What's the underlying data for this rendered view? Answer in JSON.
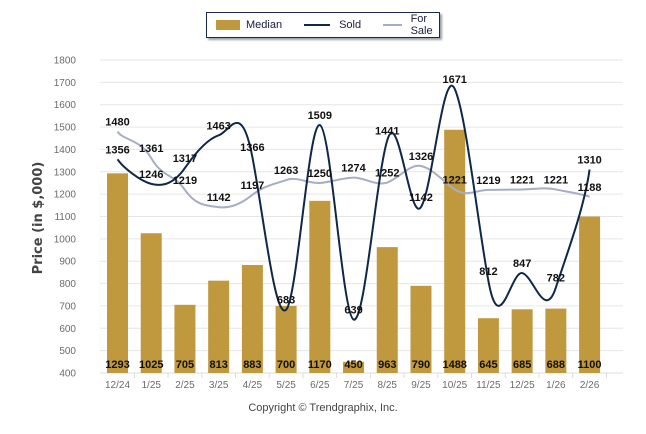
{
  "chart_data": {
    "type": "bar",
    "title": "",
    "xlabel": "",
    "ylabel": "Price (in $,000)",
    "ylim": [
      400,
      1800
    ],
    "yticks": [
      400,
      500,
      600,
      700,
      800,
      900,
      1000,
      1100,
      1200,
      1300,
      1400,
      1500,
      1600,
      1700,
      1800
    ],
    "grid": true,
    "legend_position": "top-center",
    "categories": [
      "12/24",
      "1/25",
      "2/25",
      "3/25",
      "4/25",
      "5/25",
      "6/25",
      "7/25",
      "8/25",
      "9/25",
      "10/25",
      "11/25",
      "12/25",
      "1/26",
      "2/26"
    ],
    "series": [
      {
        "name": "Median",
        "type": "bar",
        "color": "#c0983e",
        "values": [
          1293,
          1025,
          705,
          813,
          883,
          700,
          1170,
          450,
          963,
          790,
          1488,
          645,
          685,
          688,
          1100
        ]
      },
      {
        "name": "Sold",
        "type": "line",
        "color": "#0f2748",
        "values": [
          1356,
          1246,
          1317,
          1463,
          1366,
          683,
          1509,
          639,
          1441,
          1142,
          1671,
          812,
          847,
          782,
          1310
        ]
      },
      {
        "name": "For Sale",
        "type": "line",
        "color": "#a7adc6",
        "values": [
          1480,
          1361,
          1219,
          1142,
          1197,
          1263,
          1250,
          1274,
          1252,
          1326,
          1221,
          1219,
          1221,
          1221,
          1188
        ]
      }
    ]
  },
  "legend": {
    "items": [
      {
        "label": "Median",
        "color": "#c0983e"
      },
      {
        "label": "Sold",
        "color": "#0f2748"
      },
      {
        "label": "For Sale",
        "color": "#a7adc6"
      }
    ]
  },
  "footer": {
    "copyright": "Copyright © Trendgraphix, Inc."
  }
}
